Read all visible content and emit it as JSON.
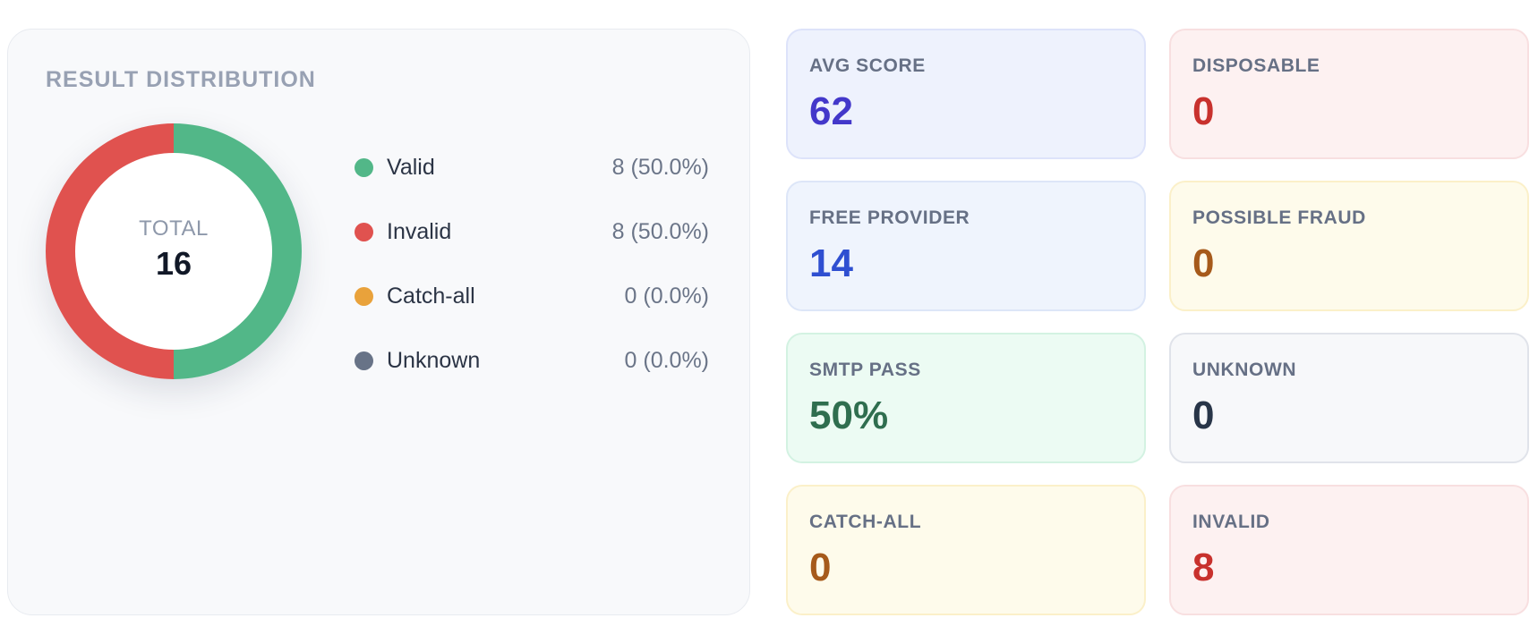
{
  "distribution": {
    "title": "RESULT DISTRIBUTION",
    "total_label": "TOTAL",
    "total_value": "16",
    "legend": [
      {
        "label": "Valid",
        "value": "8 (50.0%)",
        "color": "#52b788",
        "fraction": 0.5
      },
      {
        "label": "Invalid",
        "value": "8 (50.0%)",
        "color": "#e0524f",
        "fraction": 0.5
      },
      {
        "label": "Catch-all",
        "value": "0 (0.0%)",
        "color": "#e9a23b",
        "fraction": 0.0
      },
      {
        "label": "Unknown",
        "value": "0 (0.0%)",
        "color": "#687387",
        "fraction": 0.0
      }
    ]
  },
  "metrics": [
    {
      "label": "AVG SCORE",
      "value": "62",
      "value_color": "#4338ca",
      "theme": "c-indigo"
    },
    {
      "label": "DISPOSABLE",
      "value": "0",
      "value_color": "#c8312d",
      "theme": "c-red"
    },
    {
      "label": "FREE PROVIDER",
      "value": "14",
      "value_color": "#2f4fd1",
      "theme": "c-blue"
    },
    {
      "label": "POSSIBLE FRAUD",
      "value": "0",
      "value_color": "#a65a1b",
      "theme": "c-yellow"
    },
    {
      "label": "SMTP PASS",
      "value": "50%",
      "value_color": "#2f6e4f",
      "theme": "c-green"
    },
    {
      "label": "UNKNOWN",
      "value": "0",
      "value_color": "#283548",
      "theme": "c-gray"
    },
    {
      "label": "CATCH-ALL",
      "value": "0",
      "value_color": "#a65a1b",
      "theme": "c-yellow"
    },
    {
      "label": "INVALID",
      "value": "8",
      "value_color": "#c8312d",
      "theme": "c-red"
    }
  ]
}
